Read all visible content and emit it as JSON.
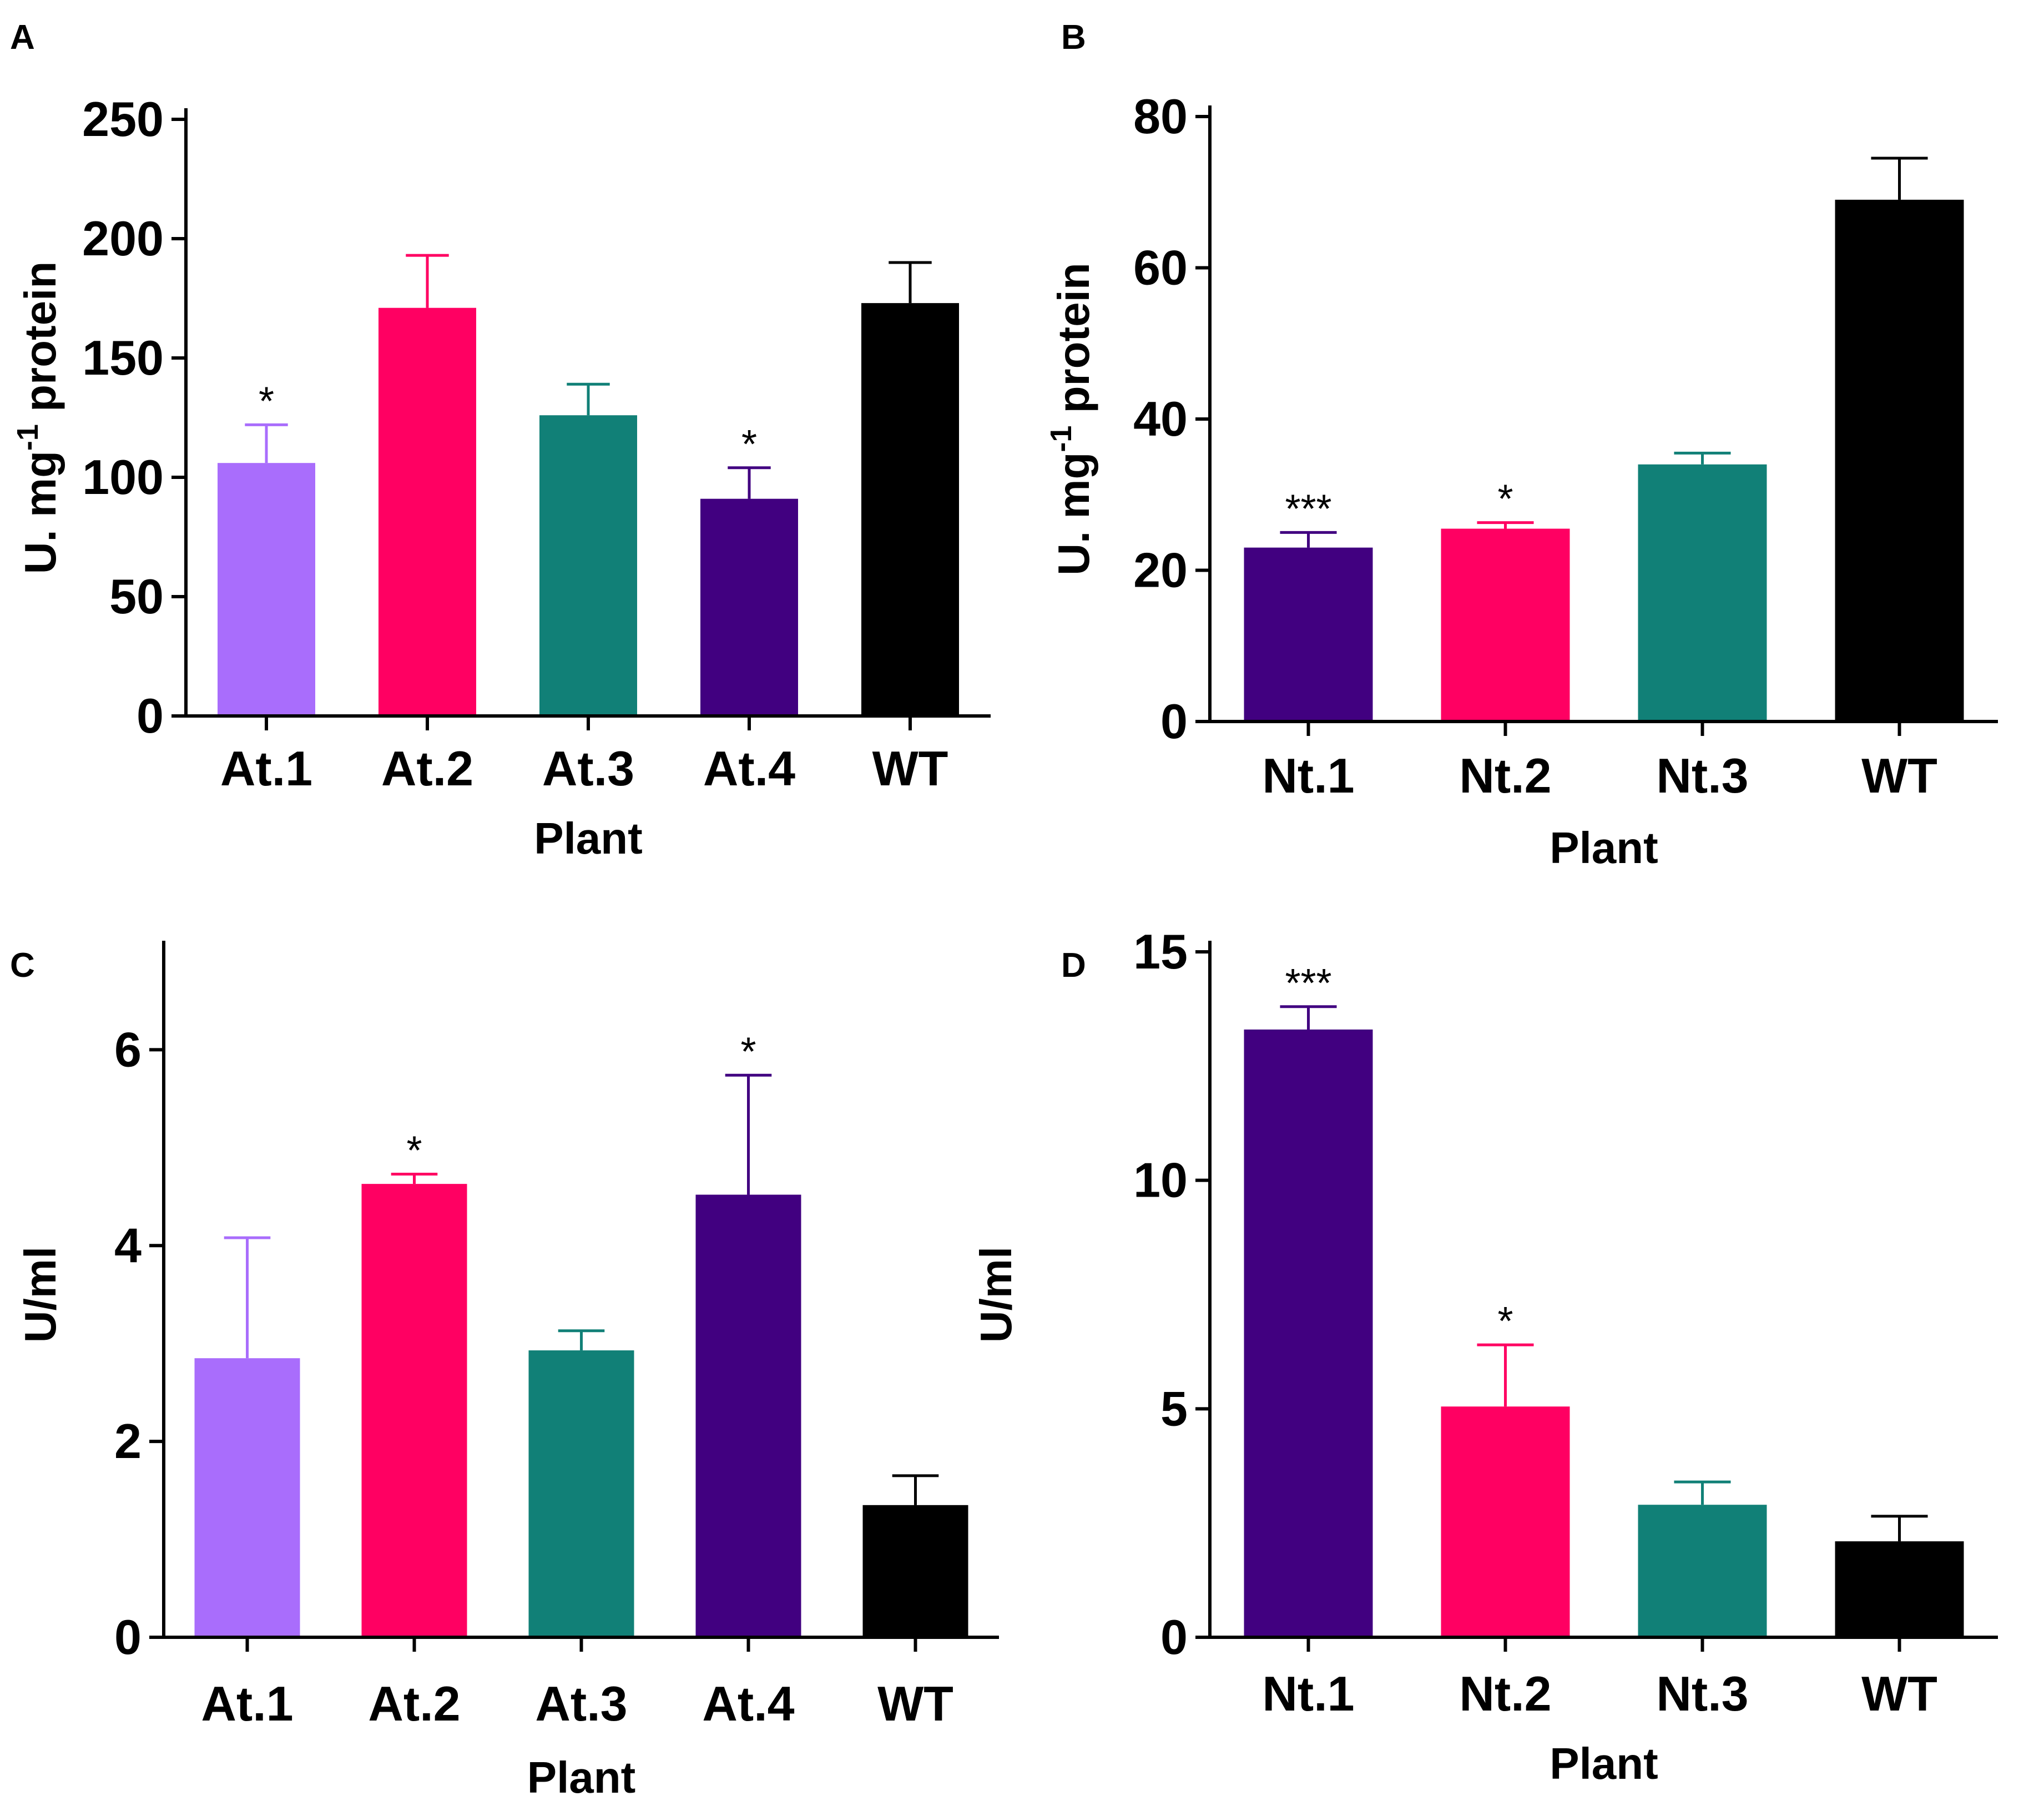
{
  "chart_data": [
    {
      "panel": "A",
      "type": "bar",
      "categories": [
        "At.1",
        "At.2",
        "At.3",
        "At.4",
        "WT"
      ],
      "values": [
        106,
        171,
        126,
        91,
        173
      ],
      "errors": [
        16,
        22,
        13,
        13,
        17
      ],
      "significance": [
        "*",
        "",
        "",
        "*",
        ""
      ],
      "colors": [
        "#a96dfc",
        "#ff0062",
        "#118077",
        "#410080",
        "#000000"
      ],
      "xlabel": "Plant",
      "ylabel": "U. mg",
      "ylabel_superscript": "-1",
      "ylabel_suffix": " protein",
      "ylim": [
        0,
        250
      ],
      "yticks": [
        0,
        50,
        100,
        150,
        200,
        250
      ]
    },
    {
      "panel": "B",
      "type": "bar",
      "categories": [
        "Nt.1",
        "Nt.2",
        "Nt.3",
        "WT"
      ],
      "values": [
        23,
        25.5,
        34,
        69
      ],
      "errors": [
        2,
        0.8,
        1.5,
        5.5
      ],
      "significance": [
        "***",
        "*",
        "",
        ""
      ],
      "colors": [
        "#410080",
        "#ff0062",
        "#118077",
        "#000000"
      ],
      "xlabel": "Plant",
      "ylabel": "U. mg",
      "ylabel_superscript": "-1",
      "ylabel_suffix": " protein",
      "ylim": [
        0,
        80
      ],
      "yticks": [
        0,
        20,
        40,
        60,
        80
      ]
    },
    {
      "panel": "C",
      "type": "bar",
      "categories": [
        "At.1",
        "At.2",
        "At.3",
        "At.4",
        "WT"
      ],
      "values": [
        2.85,
        4.63,
        2.93,
        4.52,
        1.35
      ],
      "errors": [
        1.23,
        0.1,
        0.2,
        1.22,
        0.3
      ],
      "significance": [
        "",
        "*",
        "",
        "*",
        ""
      ],
      "colors": [
        "#a96dfc",
        "#ff0062",
        "#118077",
        "#410080",
        "#000000"
      ],
      "xlabel": "Plant",
      "ylabel": "U/ml",
      "ylabel_superscript": "",
      "ylabel_suffix": "",
      "ylim": [
        0,
        7
      ],
      "yticks": [
        0,
        2,
        4,
        6
      ]
    },
    {
      "panel": "D",
      "type": "bar",
      "categories": [
        "Nt.1",
        "Nt.2",
        "Nt.3",
        "WT"
      ],
      "values": [
        13.3,
        5.05,
        2.9,
        2.1
      ],
      "errors": [
        0.5,
        1.35,
        0.5,
        0.55
      ],
      "significance": [
        "***",
        "*",
        "",
        ""
      ],
      "colors": [
        "#410080",
        "#ff0062",
        "#118077",
        "#000000"
      ],
      "xlabel": "Plant",
      "ylabel": "U/ml",
      "ylabel_superscript": "",
      "ylabel_suffix": "",
      "ylim": [
        0,
        15
      ],
      "yticks": [
        0,
        5,
        10,
        15
      ]
    }
  ]
}
